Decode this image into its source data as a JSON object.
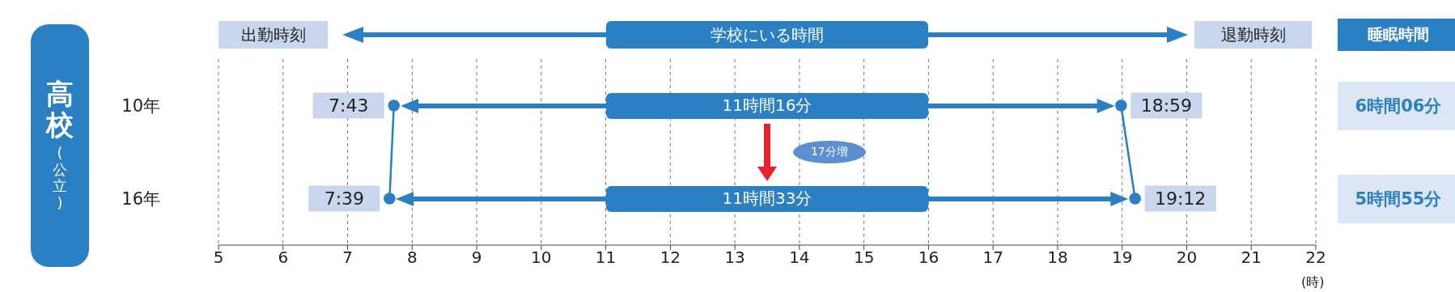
{
  "chart_data": {
    "type": "line",
    "orientation": "horizontal",
    "title": "高校",
    "subtitle": "(公立)",
    "xlabel": "(時)",
    "categories": [
      "10年",
      "16年"
    ],
    "series": [
      {
        "color": "#2b7fc3",
        "values": [
          7.717,
          7.65
        ],
        "value_labels": [
          "7:43",
          "7:39"
        ]
      },
      {
        "color": "#2b7fc3",
        "values": [
          18.983,
          19.2
        ],
        "value_labels": [
          "18:59",
          "19:12"
        ]
      }
    ],
    "marker": "circle",
    "xlim": [
      5,
      22
    ],
    "xticks": [
      5,
      6,
      7,
      8,
      9,
      10,
      11,
      12,
      13,
      14,
      15,
      16,
      17,
      18,
      19,
      20,
      21,
      22
    ],
    "grid": "x",
    "legend": false,
    "annotations": [
      "出勤時刻",
      "学校にいる時間",
      "退勤時刻",
      "睡眠時間",
      "6時間06分",
      "5時間55分",
      "17分増",
      "11時間16分",
      "11時間33分"
    ]
  }
}
